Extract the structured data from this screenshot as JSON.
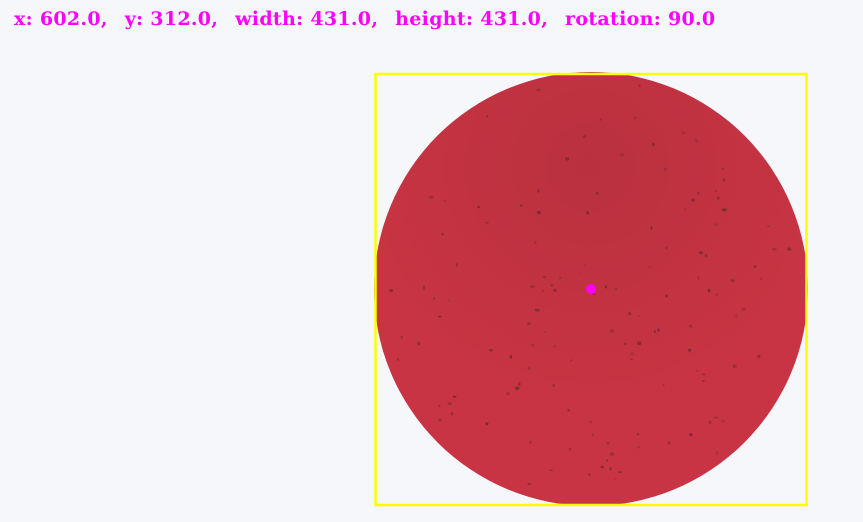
{
  "overlay": {
    "readout": {
      "x_label": "x:",
      "x_value": "602.0,",
      "y_label": "y:",
      "y_value": "312.0,",
      "width_label": "width:",
      "width_value": "431.0,",
      "height_label": "height:",
      "height_value": "431.0,",
      "rotation_label": "rotation:",
      "rotation_value": "90.0"
    },
    "text_color": "#ff00ff",
    "box_color": "#ffff00",
    "center_marker_color": "#ff00ff"
  },
  "object": {
    "shape": "circle",
    "fill_color": "#c83443",
    "speckle_color": "#5a2a2e"
  }
}
